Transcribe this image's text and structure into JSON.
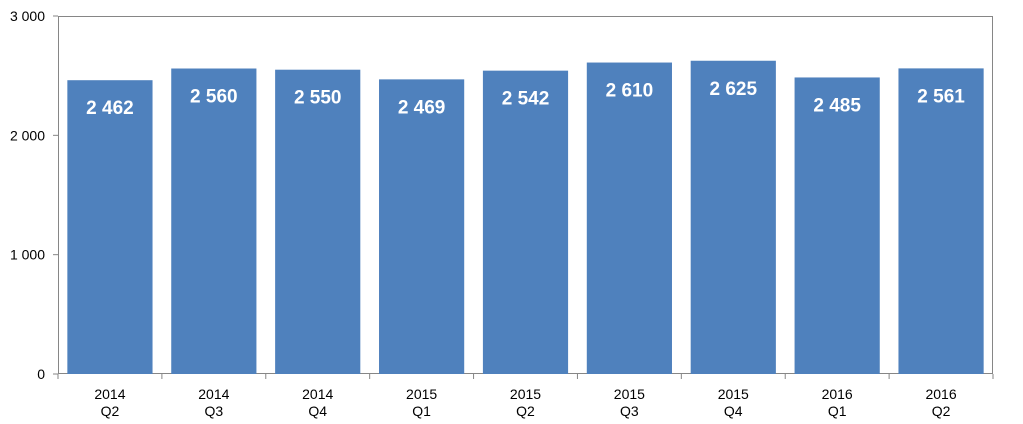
{
  "chart_data": {
    "type": "bar",
    "categories": [
      [
        "2014",
        "Q2"
      ],
      [
        "2014",
        "Q3"
      ],
      [
        "2014",
        "Q4"
      ],
      [
        "2015",
        "Q1"
      ],
      [
        "2015",
        "Q2"
      ],
      [
        "2015",
        "Q3"
      ],
      [
        "2015",
        "Q4"
      ],
      [
        "2016",
        "Q1"
      ],
      [
        "2016",
        "Q2"
      ]
    ],
    "values": [
      2462,
      2560,
      2550,
      2469,
      2542,
      2610,
      2625,
      2485,
      2561
    ],
    "data_labels": [
      "2 462",
      "2 560",
      "2 550",
      "2 469",
      "2 542",
      "2 610",
      "2 625",
      "2 485",
      "2 561"
    ],
    "y_ticks": [
      {
        "value": 0,
        "label": "0"
      },
      {
        "value": 1000,
        "label": "1 000"
      },
      {
        "value": 2000,
        "label": "2 000"
      },
      {
        "value": 3000,
        "label": "3 000"
      }
    ],
    "ylim": [
      0,
      3000
    ],
    "grid": false,
    "legend": "none",
    "bar_color": "#4f81bd",
    "axis_color": "#868686"
  }
}
